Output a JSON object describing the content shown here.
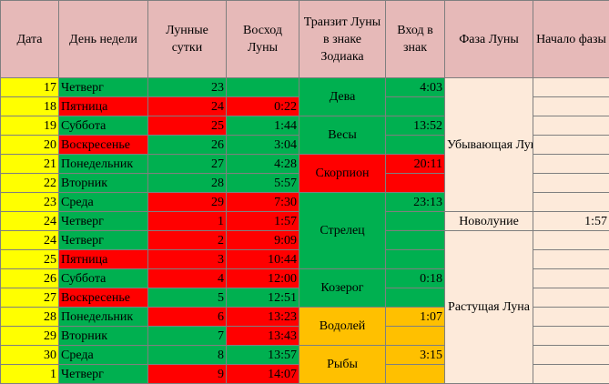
{
  "headers": {
    "date": "Дата",
    "weekday": "День недели",
    "lunar_day": "Лунные сутки",
    "moonrise": "Восход Луны",
    "transit": "Транзит Луны в знаке Зодиака",
    "entry": "Вход в знак",
    "phase": "Фаза Луны",
    "phase_start": "Начало фазы"
  },
  "rows": [
    {
      "date": "17",
      "weekday": "Четверг",
      "lunar_day": "23",
      "moonrise": "",
      "entry": "4:03"
    },
    {
      "date": "18",
      "weekday": "Пятница",
      "lunar_day": "24",
      "moonrise": "0:22",
      "entry": ""
    },
    {
      "date": "19",
      "weekday": "Суббота",
      "lunar_day": "25",
      "moonrise": "1:44",
      "entry": "13:52"
    },
    {
      "date": "20",
      "weekday": "Воскресенье",
      "lunar_day": "26",
      "moonrise": "3:04",
      "entry": ""
    },
    {
      "date": "21",
      "weekday": "Понедельник",
      "lunar_day": "27",
      "moonrise": "4:28",
      "entry": "20:11"
    },
    {
      "date": "22",
      "weekday": "Вторник",
      "lunar_day": "28",
      "moonrise": "5:57",
      "entry": ""
    },
    {
      "date": "23",
      "weekday": "Среда",
      "lunar_day": "29",
      "moonrise": "7:30",
      "entry": "23:13"
    },
    {
      "date": "24",
      "weekday": "Четверг",
      "lunar_day": "1",
      "moonrise": "1:57",
      "entry": ""
    },
    {
      "date": "24",
      "weekday": "Четверг",
      "lunar_day": "2",
      "moonrise": "9:09",
      "entry": ""
    },
    {
      "date": "25",
      "weekday": "Пятница",
      "lunar_day": "3",
      "moonrise": "10:44",
      "entry": ""
    },
    {
      "date": "26",
      "weekday": "Суббота",
      "lunar_day": "4",
      "moonrise": "12:00",
      "entry": "0:18"
    },
    {
      "date": "27",
      "weekday": "Воскресенье",
      "lunar_day": "5",
      "moonrise": "12:51",
      "entry": ""
    },
    {
      "date": "28",
      "weekday": "Понедельник",
      "lunar_day": "6",
      "moonrise": "13:23",
      "entry": "1:07"
    },
    {
      "date": "29",
      "weekday": "Вторник",
      "lunar_day": "7",
      "moonrise": "13:43",
      "entry": ""
    },
    {
      "date": "30",
      "weekday": "Среда",
      "lunar_day": "8",
      "moonrise": "13:57",
      "entry": "3:15"
    },
    {
      "date": "1",
      "weekday": "Четверг",
      "lunar_day": "9",
      "moonrise": "14:07",
      "entry": ""
    }
  ],
  "signs": {
    "virgo": "Дева",
    "libra": "Весы",
    "scorpio": "Скорпион",
    "sagittarius": "Стрелец",
    "capricorn": "Козерог",
    "aquarius": "Водолей",
    "pisces": "Рыбы"
  },
  "phases": {
    "waning": "Убывающая Луна",
    "new_moon": "Новолуние",
    "new_moon_start": "1:57",
    "waxing": "Растущая Луна"
  },
  "colors": {
    "header": "#e6b9b8",
    "date": "#ffff00",
    "green": "#00b050",
    "red": "#ff0000",
    "orange": "#ffc000",
    "peach": "#fdeada"
  }
}
